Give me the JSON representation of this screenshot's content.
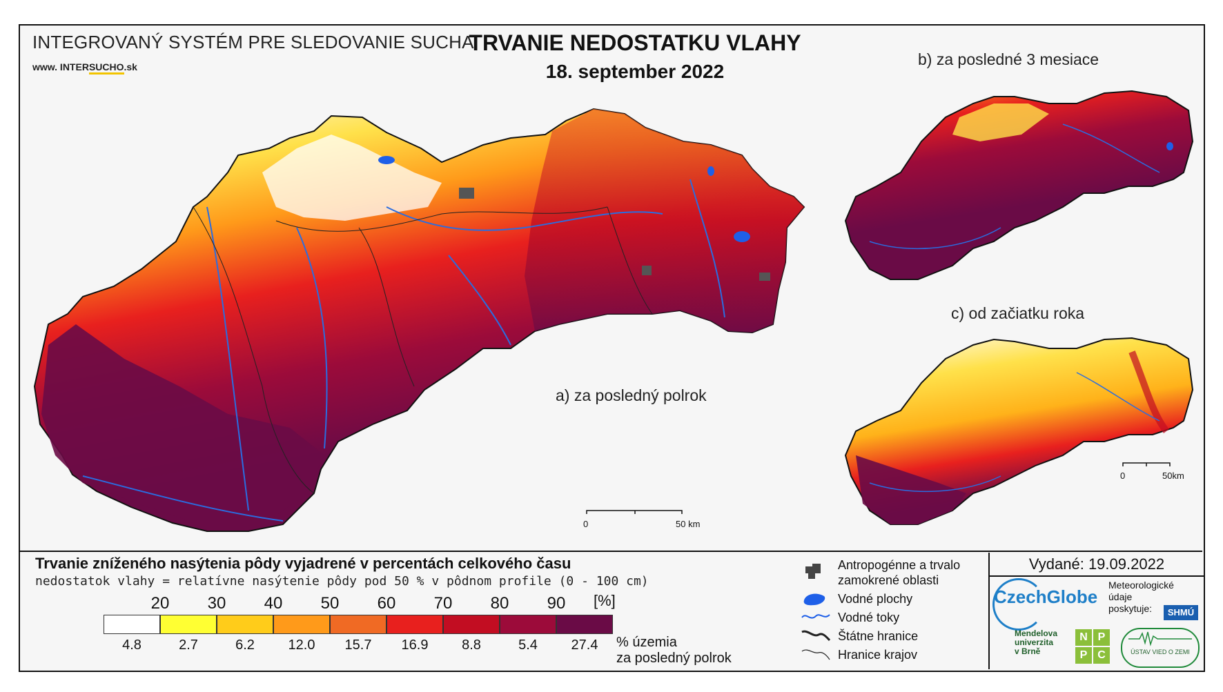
{
  "header": {
    "system_title": "INTEGROVANÝ SYSTÉM PRE SLEDOVANIE SUCHA",
    "website_prefix": "www. INTER",
    "website_accent": "SUCHO",
    "website_suffix": ".sk",
    "main_title": "TRVANIE NEDOSTATKU VLAHY",
    "date": "18. september 2022"
  },
  "panels": {
    "a_label": "a) za posledný polrok",
    "b_label": "b) za posledné 3 mesiace",
    "c_label": "c) od začiatku roka"
  },
  "scale_bars": {
    "main": {
      "start": "0",
      "end": "50 km"
    },
    "small": {
      "start": "0",
      "end": "50km"
    }
  },
  "legend": {
    "title": "Trvanie zníženého nasýtenia pôdy vyjadrené v percentách celkového času",
    "subtitle": "nedostatok vlahy = relatívne nasýtenie pôdy pod 50 % v pôdnom profile (0 - 100 cm)",
    "thresholds": [
      "20",
      "30",
      "40",
      "50",
      "60",
      "70",
      "80",
      "90"
    ],
    "unit": "[%]",
    "colors": [
      "#ffffff",
      "#ffff33",
      "#ffcc1a",
      "#ff9a1a",
      "#f06a24",
      "#e8201e",
      "#c20d22",
      "#9c0b3a",
      "#6a0b46"
    ],
    "class_percentages": [
      "4.8",
      "2.7",
      "6.2",
      "12.0",
      "15.7",
      "16.9",
      "8.8",
      "5.4",
      "27.4"
    ],
    "area_note_line1": "% územia",
    "area_note_line2": "za posledný polrok"
  },
  "map_legend": [
    {
      "icon": "urban-area-icon",
      "label_lines": [
        "Antropogénne a trvalo",
        "zamokrené oblasti"
      ]
    },
    {
      "icon": "water-body-icon",
      "label_lines": [
        "Vodné plochy"
      ]
    },
    {
      "icon": "river-icon",
      "label_lines": [
        "Vodné toky"
      ]
    },
    {
      "icon": "state-border-icon",
      "label_lines": [
        "Štátne hranice"
      ]
    },
    {
      "icon": "region-border-icon",
      "label_lines": [
        "Hranice krajov"
      ]
    }
  ],
  "issued": "Vydané: 19.09.2022",
  "credits": {
    "czechglobe": "CzechGlobe",
    "meteo_lines": [
      "Meteorologické",
      "údaje",
      "poskytuje:"
    ],
    "shmu": "SHMÚ",
    "mendel_lines": [
      "Mendelova",
      "univerzita",
      "v Brně"
    ],
    "npcp": [
      "N",
      "P",
      "P",
      "C"
    ],
    "uvz": "ÚSTAV VIED O ZEMI"
  }
}
